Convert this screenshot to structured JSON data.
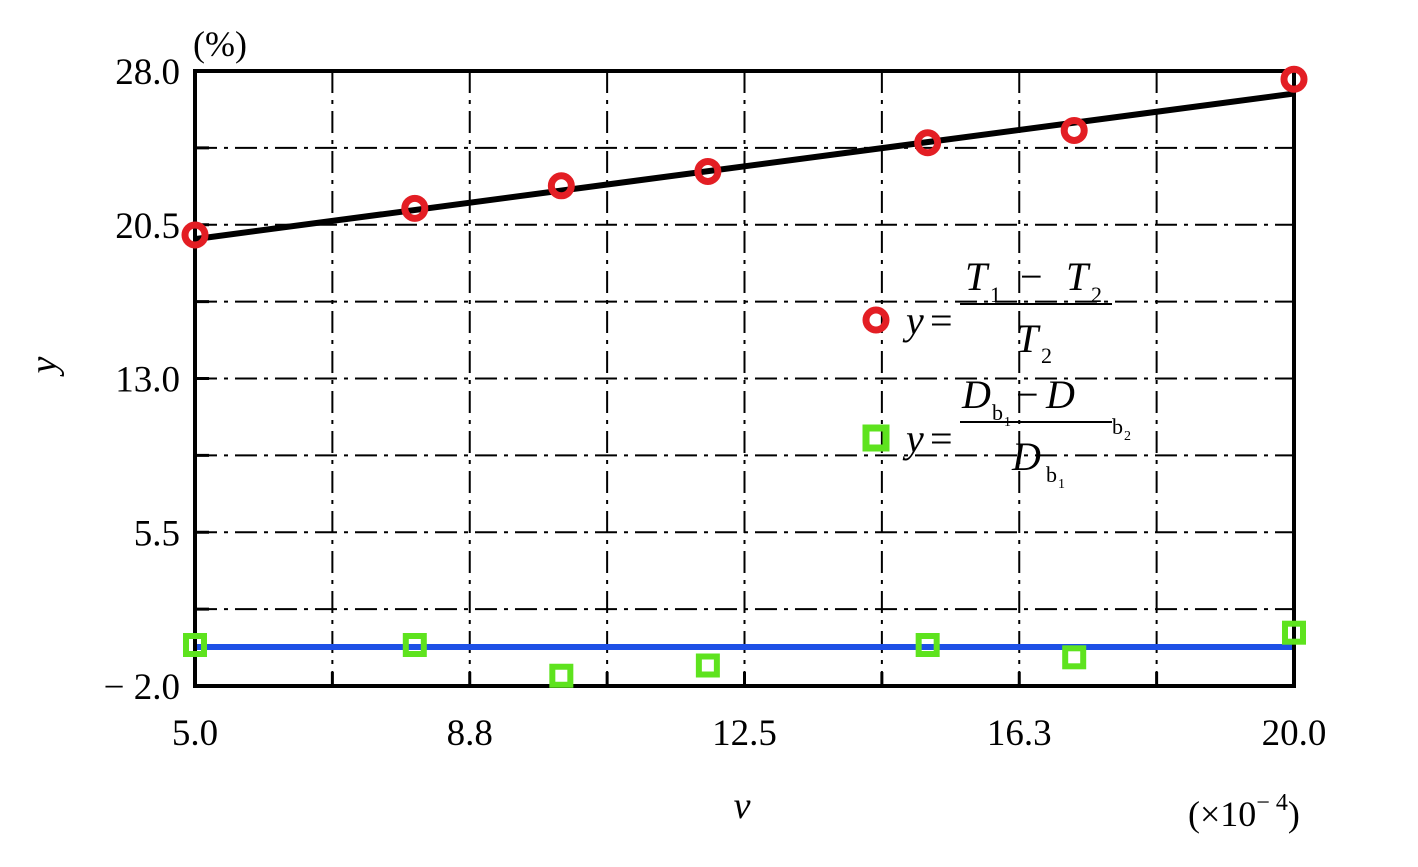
{
  "chart_data": {
    "type": "scatter",
    "x_ticks": [
      "5.0",
      "8.8",
      "12.5",
      "16.3",
      "20.0"
    ],
    "y_ticks": [
      "28.0",
      "20.5",
      "13.0",
      "5.5",
      "− 2.0"
    ],
    "xlabel": "v",
    "ylabel": "y",
    "x_unit": "(×10",
    "x_unit_exp": "− 4",
    "x_unit_close": ")",
    "y_unit": "(%)",
    "xlim": [
      5.0,
      20.0
    ],
    "ylim": [
      -2.0,
      28.0
    ],
    "grid": true,
    "legend_position": "right",
    "series": [
      {
        "marker": "circle",
        "color": "#e31e24",
        "x": [
          5.0,
          8.0,
          10.0,
          12.0,
          15.0,
          17.0,
          20.0
        ],
        "y": [
          20.0,
          21.3,
          22.4,
          23.1,
          24.5,
          25.1,
          27.6
        ],
        "fit": {
          "color": "#000000",
          "x": [
            5.0,
            20.0
          ],
          "y": [
            19.8,
            26.9
          ]
        }
      },
      {
        "marker": "square",
        "color": "#5ee31e",
        "x": [
          5.0,
          8.0,
          10.0,
          12.0,
          15.0,
          17.0,
          20.0
        ],
        "y": [
          0.0,
          0.0,
          -1.5,
          -1.0,
          0.0,
          -0.6,
          0.6
        ],
        "fit": {
          "color": "#1e50e6",
          "x": [
            5.0,
            20.0
          ],
          "y": [
            -0.1,
            -0.1
          ]
        }
      }
    ],
    "legend": [
      {
        "y": "y",
        "eq": "=",
        "num_left": "T",
        "num_left_sub": "1",
        "minus": "−",
        "num_right": "T",
        "num_right_sub": "2",
        "den": "T",
        "den_sub": "2"
      },
      {
        "y": "y",
        "eq": "=",
        "num_left": "D",
        "num_left_sub": "b",
        "num_left_subsub": "1",
        "minus": "−",
        "num_right": "D",
        "num_right_sub": "b",
        "num_right_subsub": "2",
        "den": "D",
        "den_sub": "b",
        "den_subsub": "1"
      }
    ]
  }
}
